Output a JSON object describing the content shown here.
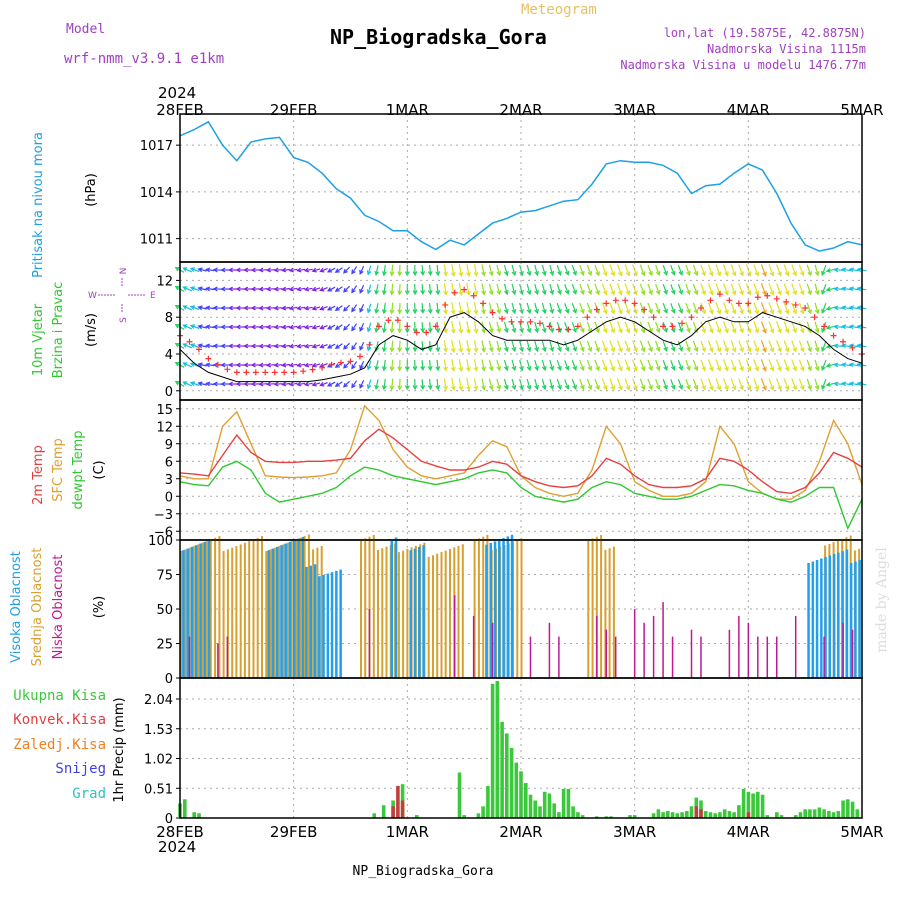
{
  "header": {
    "model_label": "Model",
    "model_name": "wrf-nmm_v3.9.1 e1km",
    "product": "Meteogram",
    "station": "NP_Biogradska_Gora",
    "lonlat": "lon,lat (19.5875E, 42.8875N)",
    "elevation": "Nadmorska Visina 1115m",
    "model_elevation": "Nadmorska Visina u modelu 1476.77m",
    "footer_station": "NP_Biogradska_Gora",
    "credit": "made by Angel"
  },
  "time_axis": {
    "start_year": "2024",
    "labels": [
      "28FEB",
      "29FEB",
      "1MAR",
      "2MAR",
      "3MAR",
      "4MAR",
      "5MAR"
    ],
    "hours": 144
  },
  "colors": {
    "pressure": "#1ea0e6",
    "temp2m": "#e84040",
    "sfc_temp": "#e0a030",
    "dewpt": "#30c830",
    "high_cloud": "#20a0f0",
    "mid_cloud": "#d8a030",
    "low_cloud": "#c01890",
    "precip_total": "#3cc83c",
    "precip_conv": "#c04040",
    "freezing": "#f08020",
    "snow": "#4040e0",
    "hail": "#30c0c0",
    "wind_line": "#000000",
    "gust": "#ff3030",
    "compass": "#a040c0"
  },
  "panels": {
    "pressure": {
      "ylabel_1": "Pritisak na nivou mora",
      "unit": "(hPa)",
      "ticks": [
        "1011",
        "1014",
        "1017"
      ]
    },
    "wind": {
      "ylabel_1": "10m Vjetar",
      "ylabel_2": "Brzina i Pravac",
      "unit": "(m/s)",
      "ticks": [
        "0",
        "4",
        "8",
        "12"
      ],
      "compass_n": "N",
      "compass_s": "S",
      "compass_e": "E",
      "compass_w": "W"
    },
    "temperature": {
      "ylabel_1": "2m Temp",
      "ylabel_2": "SFC Temp",
      "ylabel_3": "dewpt Temp",
      "unit": "(C)",
      "ticks": [
        "−6",
        "−3",
        "0",
        "3",
        "6",
        "9",
        "12",
        "15"
      ]
    },
    "clouds": {
      "ylabel_1": "Visoka Oblacnost",
      "ylabel_2": "Srednja Oblacnost",
      "ylabel_3": "Niska Oblacnost",
      "unit": "(%)",
      "ticks": [
        "0",
        "25",
        "50",
        "75",
        "100"
      ]
    },
    "precip": {
      "legend_total": "Ukupna Kisa",
      "legend_conv": "Konvek.Kisa",
      "legend_freezing": "Zaledj.Kisa",
      "legend_snow": "Snijeg",
      "legend_hail": "Grad",
      "ylabel": "1hr Precip (mm)",
      "ticks": [
        "0",
        "0.51",
        "1.02",
        "1.53",
        "2.04"
      ]
    }
  },
  "chart_data": [
    {
      "type": "line",
      "name": "pressure",
      "ylim": [
        1009.5,
        1019
      ],
      "x_hours": [
        0,
        3,
        6,
        9,
        12,
        15,
        18,
        21,
        24,
        27,
        30,
        33,
        36,
        39,
        42,
        45,
        48,
        51,
        54,
        57,
        60,
        63,
        66,
        69,
        72,
        75,
        78,
        81,
        84,
        87,
        90,
        93,
        96,
        99,
        102,
        105,
        108,
        111,
        114,
        117,
        120,
        123,
        126,
        129,
        132,
        135,
        138,
        141,
        144
      ],
      "values": [
        1017.6,
        1018.0,
        1018.5,
        1017.0,
        1016.0,
        1017.2,
        1017.4,
        1017.5,
        1016.2,
        1015.9,
        1015.2,
        1014.2,
        1013.6,
        1012.5,
        1012.1,
        1011.5,
        1011.5,
        1010.8,
        1010.3,
        1010.9,
        1010.6,
        1011.3,
        1012.0,
        1012.3,
        1012.7,
        1012.8,
        1013.1,
        1013.4,
        1013.5,
        1014.5,
        1015.8,
        1016.0,
        1015.9,
        1015.9,
        1015.7,
        1015.2,
        1013.9,
        1014.4,
        1014.5,
        1015.2,
        1015.8,
        1015.4,
        1013.9,
        1012.0,
        1010.6,
        1010.2,
        1010.4,
        1010.8,
        1010.6
      ]
    },
    {
      "type": "line",
      "name": "wind",
      "ylim": [
        -1,
        14
      ],
      "x_hours": [
        0,
        3,
        6,
        9,
        12,
        15,
        18,
        21,
        24,
        27,
        30,
        33,
        36,
        39,
        42,
        45,
        48,
        51,
        54,
        57,
        60,
        63,
        66,
        69,
        72,
        75,
        78,
        81,
        84,
        87,
        90,
        93,
        96,
        99,
        102,
        105,
        108,
        111,
        114,
        117,
        120,
        123,
        126,
        129,
        132,
        135,
        138,
        141,
        144
      ],
      "speed": [
        4.5,
        3.0,
        2.0,
        1.5,
        1.0,
        1.0,
        1.0,
        1.0,
        1.0,
        1.0,
        1.2,
        1.5,
        1.8,
        2.5,
        5.0,
        6.0,
        5.5,
        4.5,
        5.0,
        8.0,
        8.5,
        7.5,
        6.0,
        5.5,
        5.5,
        5.5,
        5.5,
        5.0,
        5.5,
        6.5,
        7.5,
        8.0,
        7.5,
        6.5,
        5.5,
        5.0,
        6.0,
        7.5,
        8.0,
        7.5,
        7.5,
        8.5,
        8.0,
        7.5,
        7.0,
        6.0,
        4.5,
        3.5,
        3.0
      ],
      "gust": [
        6.0,
        5.0,
        3.5,
        2.5,
        2.0,
        2.0,
        2.0,
        2.0,
        2.0,
        2.2,
        2.5,
        3.0,
        3.2,
        4.0,
        7.0,
        8.0,
        7.0,
        6.0,
        7.0,
        10.5,
        11.0,
        10.0,
        8.5,
        7.5,
        7.5,
        7.5,
        7.0,
        6.5,
        7.0,
        8.5,
        9.5,
        10.0,
        9.5,
        8.5,
        7.0,
        7.0,
        8.0,
        9.5,
        10.5,
        9.5,
        9.5,
        10.5,
        10.0,
        9.5,
        9.0,
        7.5,
        6.0,
        5.0,
        4.0
      ],
      "direction_deg": [
        300,
        290,
        280,
        270,
        270,
        270,
        265,
        265,
        260,
        260,
        250,
        240,
        220,
        200,
        190,
        185,
        180,
        175,
        175,
        170,
        170,
        170,
        165,
        165,
        165,
        165,
        165,
        160,
        160,
        160,
        160,
        160,
        160,
        160,
        160,
        160,
        160,
        160,
        160,
        160,
        160,
        160,
        160,
        160,
        160,
        165,
        270,
        280,
        280
      ]
    },
    {
      "type": "line",
      "name": "temperature",
      "ylim": [
        -7.5,
        16.5
      ],
      "x_hours": [
        0,
        3,
        6,
        9,
        12,
        15,
        18,
        21,
        24,
        27,
        30,
        33,
        36,
        39,
        42,
        45,
        48,
        51,
        54,
        57,
        60,
        63,
        66,
        69,
        72,
        75,
        78,
        81,
        84,
        87,
        90,
        93,
        96,
        99,
        102,
        105,
        108,
        111,
        114,
        117,
        120,
        123,
        126,
        129,
        132,
        135,
        138,
        141,
        144
      ],
      "series": [
        {
          "name": "2m Temp",
          "values": [
            4.0,
            3.8,
            3.5,
            7.0,
            10.5,
            7.5,
            6.0,
            5.8,
            5.8,
            6.0,
            6.0,
            6.2,
            6.5,
            9.5,
            11.5,
            10.0,
            8.0,
            6.0,
            5.2,
            4.5,
            4.5,
            5.0,
            6.0,
            5.5,
            3.5,
            2.5,
            1.8,
            1.5,
            1.8,
            3.5,
            6.5,
            5.5,
            3.5,
            2.0,
            1.5,
            1.5,
            1.8,
            3.0,
            6.5,
            6.0,
            4.5,
            2.5,
            0.8,
            0.5,
            1.5,
            4.0,
            7.5,
            6.5,
            5.0
          ]
        },
        {
          "name": "SFC Temp",
          "values": [
            3.5,
            3.0,
            3.0,
            12.0,
            14.5,
            9.0,
            3.5,
            3.3,
            3.2,
            3.3,
            3.5,
            4.0,
            8.0,
            15.5,
            13.0,
            8.0,
            5.0,
            3.5,
            3.0,
            3.5,
            4.0,
            7.0,
            9.5,
            8.5,
            3.5,
            1.5,
            0.5,
            0.0,
            0.5,
            4.5,
            12.0,
            9.0,
            2.5,
            1.0,
            0.0,
            0.0,
            0.5,
            2.5,
            12.0,
            9.0,
            2.5,
            0.5,
            -0.5,
            -0.5,
            1.0,
            6.0,
            13.0,
            9.0,
            2.0
          ]
        },
        {
          "name": "dewpt Temp",
          "values": [
            2.5,
            2.0,
            1.8,
            5.0,
            6.0,
            4.5,
            0.5,
            -1.0,
            -0.5,
            0.0,
            0.5,
            1.5,
            3.5,
            5.0,
            4.5,
            3.5,
            3.0,
            2.5,
            2.0,
            2.5,
            3.0,
            4.0,
            4.5,
            4.0,
            1.5,
            0.0,
            -0.5,
            -1.0,
            -0.5,
            1.5,
            2.5,
            2.0,
            0.5,
            0.0,
            -0.5,
            -0.5,
            0.0,
            1.0,
            2.0,
            1.8,
            1.0,
            0.5,
            -0.5,
            -1.0,
            0.0,
            1.5,
            1.5,
            -5.5,
            -0.5
          ]
        }
      ]
    },
    {
      "type": "bar",
      "name": "clouds",
      "ylim": [
        0,
        100
      ],
      "segments_high": [
        [
          0,
          6,
          100
        ],
        [
          18,
          26,
          100
        ],
        [
          26,
          34,
          80
        ],
        [
          44,
          46,
          100
        ],
        [
          48,
          52,
          100
        ],
        [
          64,
          70,
          100
        ],
        [
          132,
          144,
          90
        ]
      ],
      "segments_mid": [
        [
          0,
          30,
          100
        ],
        [
          38,
          46,
          100
        ],
        [
          46,
          60,
          95
        ],
        [
          62,
          72,
          100
        ],
        [
          86,
          92,
          100
        ],
        [
          136,
          144,
          100
        ]
      ],
      "low_spikes": [
        [
          2,
          30
        ],
        [
          8,
          25
        ],
        [
          10,
          30
        ],
        [
          40,
          50
        ],
        [
          58,
          60
        ],
        [
          62,
          45
        ],
        [
          66,
          40
        ],
        [
          74,
          30
        ],
        [
          78,
          40
        ],
        [
          80,
          30
        ],
        [
          88,
          45
        ],
        [
          90,
          35
        ],
        [
          92,
          30
        ],
        [
          96,
          50
        ],
        [
          98,
          40
        ],
        [
          100,
          45
        ],
        [
          102,
          55
        ],
        [
          104,
          30
        ],
        [
          108,
          35
        ],
        [
          110,
          30
        ],
        [
          116,
          35
        ],
        [
          118,
          45
        ],
        [
          120,
          40
        ],
        [
          122,
          30
        ],
        [
          124,
          30
        ],
        [
          126,
          30
        ],
        [
          130,
          45
        ],
        [
          136,
          30
        ],
        [
          140,
          40
        ],
        [
          142,
          35
        ]
      ]
    },
    {
      "type": "bar",
      "name": "precip",
      "ylim": [
        0,
        2.4
      ],
      "total": [
        [
          0,
          0.25
        ],
        [
          1,
          0.32
        ],
        [
          3,
          0.1
        ],
        [
          4,
          0.08
        ],
        [
          41,
          0.08
        ],
        [
          43,
          0.22
        ],
        [
          45,
          0.3
        ],
        [
          47,
          0.58
        ],
        [
          50,
          0.05
        ],
        [
          59,
          0.78
        ],
        [
          60,
          0.05
        ],
        [
          63,
          0.08
        ],
        [
          64,
          0.2
        ],
        [
          65,
          0.55
        ],
        [
          66,
          2.3
        ],
        [
          67,
          2.35
        ],
        [
          68,
          1.65
        ],
        [
          69,
          1.45
        ],
        [
          70,
          1.2
        ],
        [
          71,
          0.95
        ],
        [
          72,
          0.8
        ],
        [
          73,
          0.6
        ],
        [
          74,
          0.4
        ],
        [
          75,
          0.3
        ],
        [
          76,
          0.2
        ],
        [
          77,
          0.45
        ],
        [
          78,
          0.42
        ],
        [
          79,
          0.25
        ],
        [
          80,
          0.1
        ],
        [
          81,
          0.5
        ],
        [
          82,
          0.5
        ],
        [
          83,
          0.2
        ],
        [
          84,
          0.1
        ],
        [
          85,
          0.05
        ],
        [
          88,
          0.03
        ],
        [
          90,
          0.03
        ],
        [
          91,
          0.03
        ],
        [
          95,
          0.05
        ],
        [
          96,
          0.05
        ],
        [
          100,
          0.08
        ],
        [
          101,
          0.15
        ],
        [
          102,
          0.1
        ],
        [
          103,
          0.12
        ],
        [
          104,
          0.1
        ],
        [
          105,
          0.08
        ],
        [
          106,
          0.1
        ],
        [
          107,
          0.12
        ],
        [
          108,
          0.2
        ],
        [
          109,
          0.35
        ],
        [
          110,
          0.3
        ],
        [
          111,
          0.12
        ],
        [
          112,
          0.1
        ],
        [
          113,
          0.08
        ],
        [
          114,
          0.1
        ],
        [
          115,
          0.15
        ],
        [
          116,
          0.12
        ],
        [
          117,
          0.1
        ],
        [
          118,
          0.22
        ],
        [
          119,
          0.5
        ],
        [
          120,
          0.45
        ],
        [
          121,
          0.42
        ],
        [
          122,
          0.45
        ],
        [
          123,
          0.4
        ],
        [
          124,
          0.05
        ],
        [
          126,
          0.1
        ],
        [
          127,
          0.05
        ],
        [
          130,
          0.05
        ],
        [
          131,
          0.1
        ],
        [
          132,
          0.15
        ],
        [
          133,
          0.15
        ],
        [
          134,
          0.15
        ],
        [
          135,
          0.18
        ],
        [
          136,
          0.15
        ],
        [
          137,
          0.12
        ],
        [
          138,
          0.1
        ],
        [
          139,
          0.12
        ],
        [
          140,
          0.3
        ],
        [
          141,
          0.32
        ],
        [
          142,
          0.28
        ],
        [
          143,
          0.15
        ]
      ],
      "convective": [
        [
          45,
          0.2
        ],
        [
          46,
          0.55
        ],
        [
          47,
          0.3
        ],
        [
          109,
          0.2
        ],
        [
          110,
          0.15
        ],
        [
          120,
          0.1
        ]
      ]
    }
  ]
}
